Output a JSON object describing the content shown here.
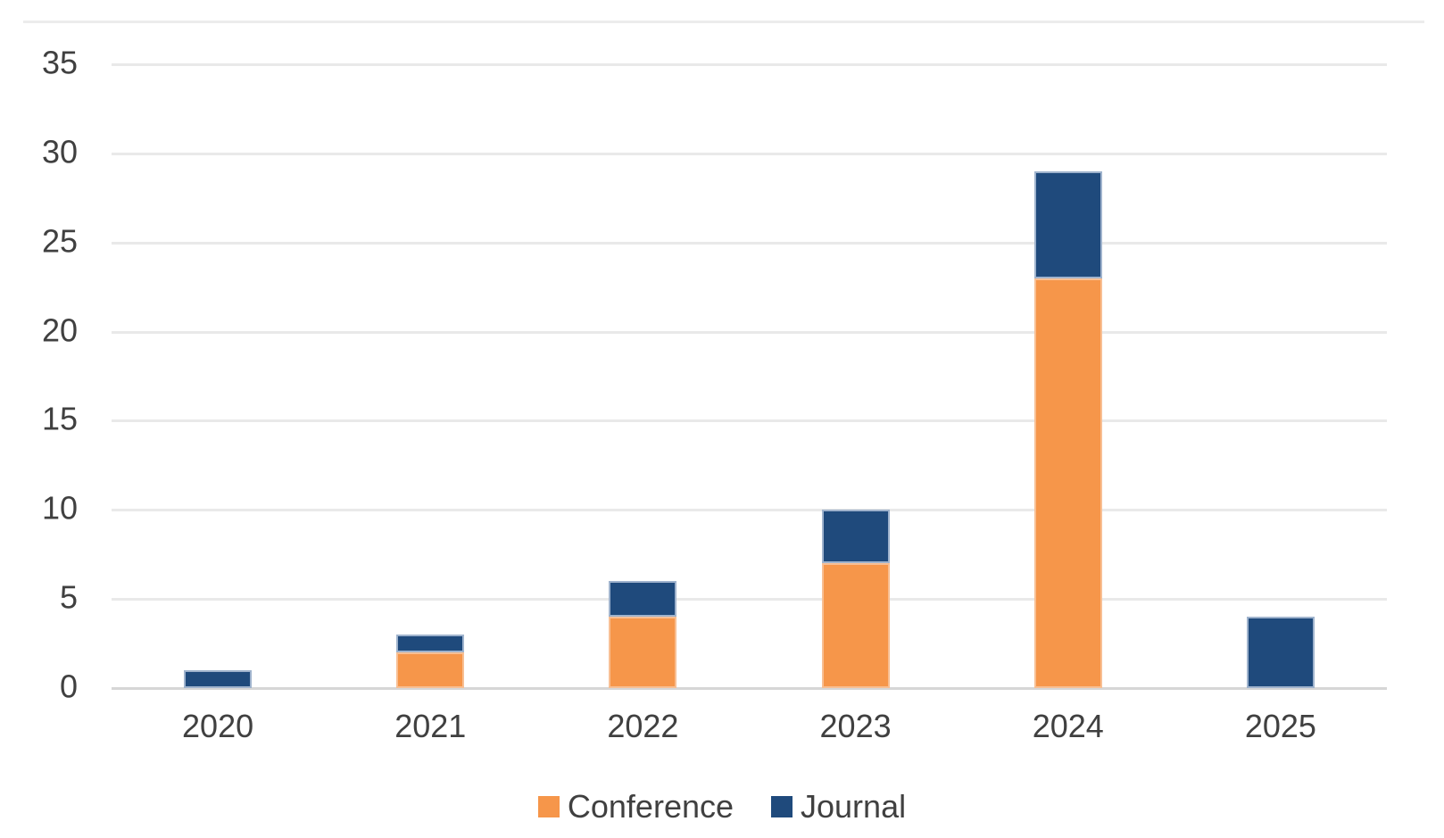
{
  "chart_data": {
    "type": "bar",
    "stacked": true,
    "title": "",
    "xlabel": "",
    "ylabel": "",
    "categories": [
      "2020",
      "2021",
      "2022",
      "2023",
      "2024",
      "2025"
    ],
    "series": [
      {
        "name": "Conference",
        "color": "#f6964a",
        "border_color": "#f8bf93",
        "values": [
          0,
          2,
          4,
          7,
          23,
          0
        ]
      },
      {
        "name": "Journal",
        "color": "#1f4a7c",
        "border_color": "#9fb3cd",
        "values": [
          1,
          1,
          2,
          3,
          6,
          4
        ]
      }
    ],
    "totals": [
      1,
      3,
      6,
      10,
      29,
      4
    ],
    "y_ticks": [
      0,
      5,
      10,
      15,
      20,
      25,
      30,
      35
    ],
    "ylim": [
      0,
      35
    ],
    "grid": true,
    "legend_position": "bottom",
    "legend": [
      {
        "label": "Conference",
        "color": "#f6964a"
      },
      {
        "label": "Journal",
        "color": "#1f4a7c"
      }
    ]
  },
  "colors": {
    "background": "#ffffff",
    "gridline": "#e9e9e9",
    "axis_line": "#d6d6d6",
    "top_border": "#ececec",
    "axis_text": "#404040",
    "conference": "#f6964a",
    "journal": "#1f4a7c"
  }
}
